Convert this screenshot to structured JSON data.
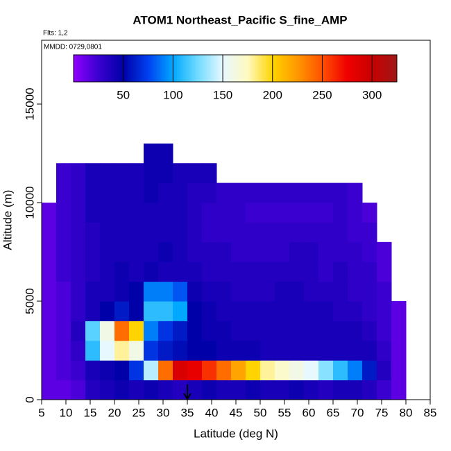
{
  "chart_data": {
    "type": "heatmap",
    "title": "ATOM1 Northeast_Pacific S_fine_AMP",
    "xlabel": "Latitude (deg N)",
    "ylabel": "Altitude (m)",
    "annotations": [
      "Flts: 1,2",
      "MMDD: 0729,0801"
    ],
    "arrow_lat": 35,
    "xlim": [
      5,
      85
    ],
    "xticks": [
      5,
      10,
      15,
      20,
      25,
      30,
      35,
      40,
      45,
      50,
      55,
      60,
      65,
      70,
      75,
      80,
      85
    ],
    "ylim": [
      0,
      18240
    ],
    "yticks": [
      0,
      5000,
      10000,
      15000
    ],
    "zlim": [
      0,
      325
    ],
    "zticks": [
      50,
      100,
      150,
      200,
      250,
      300
    ],
    "colorscale": [
      "#8f00ff",
      "#3a00d0",
      "#0000a8",
      "#0040f0",
      "#00a8ff",
      "#70dcff",
      "#e8f8ff",
      "#fffac0",
      "#ffd400",
      "#ff9800",
      "#ff5000",
      "#f00000",
      "#c80000",
      "#a01818"
    ],
    "lat_bins": [
      5,
      8,
      11,
      14,
      17,
      20,
      23,
      26,
      29,
      32,
      35,
      38,
      41,
      44,
      47,
      50,
      53,
      56,
      59,
      62,
      65,
      68,
      71,
      74,
      77,
      80
    ],
    "alt_bins": [
      0,
      1000,
      2000,
      3000,
      4000,
      5000,
      6000,
      7000,
      8000,
      9000,
      10000,
      11000,
      12000,
      13000
    ],
    "z": [
      [
        15,
        15,
        20,
        35,
        40,
        45,
        40,
        45,
        40,
        35,
        40,
        45,
        40,
        40,
        45,
        40,
        40,
        45,
        40,
        35,
        40,
        40,
        35,
        25,
        15
      ],
      [
        15,
        20,
        25,
        40,
        45,
        50,
        70,
        140,
        240,
        290,
        280,
        260,
        240,
        220,
        200,
        180,
        170,
        160,
        150,
        130,
        110,
        90,
        60,
        35,
        15
      ],
      [
        15,
        20,
        30,
        110,
        150,
        180,
        160,
        70,
        60,
        55,
        50,
        50,
        45,
        45,
        45,
        40,
        40,
        40,
        40,
        40,
        40,
        40,
        40,
        30,
        15
      ],
      [
        15,
        20,
        35,
        120,
        160,
        240,
        200,
        90,
        70,
        60,
        50,
        45,
        45,
        40,
        40,
        40,
        40,
        40,
        40,
        40,
        40,
        40,
        35,
        25,
        15
      ],
      [
        15,
        20,
        30,
        40,
        50,
        60,
        50,
        110,
        110,
        100,
        50,
        45,
        40,
        40,
        40,
        40,
        40,
        40,
        40,
        40,
        35,
        35,
        30,
        25,
        15
      ],
      [
        15,
        20,
        30,
        40,
        40,
        45,
        50,
        90,
        90,
        80,
        45,
        40,
        40,
        35,
        35,
        35,
        40,
        40,
        35,
        35,
        35,
        30,
        30,
        25,
        null
      ],
      [
        15,
        25,
        30,
        35,
        40,
        45,
        40,
        45,
        40,
        40,
        40,
        35,
        35,
        35,
        35,
        35,
        35,
        35,
        35,
        30,
        35,
        30,
        30,
        20,
        null
      ],
      [
        15,
        25,
        30,
        35,
        40,
        40,
        40,
        40,
        45,
        40,
        35,
        35,
        35,
        30,
        30,
        30,
        30,
        35,
        35,
        30,
        30,
        30,
        25,
        20,
        null
      ],
      [
        15,
        25,
        30,
        35,
        40,
        40,
        40,
        40,
        40,
        40,
        35,
        30,
        30,
        30,
        30,
        30,
        30,
        30,
        30,
        30,
        30,
        25,
        25,
        null,
        null
      ],
      [
        15,
        25,
        30,
        40,
        40,
        40,
        40,
        40,
        40,
        40,
        35,
        30,
        30,
        30,
        25,
        25,
        25,
        25,
        25,
        25,
        30,
        25,
        20,
        null,
        null
      ],
      [
        null,
        25,
        30,
        40,
        40,
        40,
        40,
        45,
        40,
        40,
        35,
        35,
        30,
        30,
        30,
        30,
        30,
        30,
        30,
        30,
        30,
        25,
        null,
        null,
        null
      ],
      [
        null,
        25,
        30,
        40,
        40,
        40,
        40,
        45,
        45,
        40,
        40,
        40,
        null,
        null,
        null,
        null,
        null,
        null,
        null,
        null,
        null,
        null,
        null,
        null,
        null
      ],
      [
        null,
        null,
        null,
        null,
        null,
        null,
        null,
        45,
        45,
        null,
        null,
        null,
        null,
        null,
        null,
        null,
        null,
        null,
        null,
        null,
        null,
        null,
        null,
        null,
        null
      ]
    ]
  }
}
